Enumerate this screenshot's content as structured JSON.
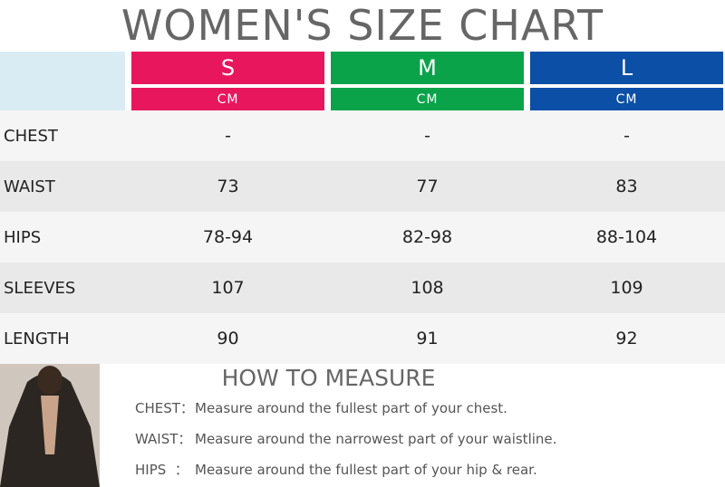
{
  "header": {
    "title": "WOMEN'S SIZE CHART"
  },
  "table": {
    "columns": [
      {
        "size": "S",
        "unit": "CM",
        "color": "#e8175d"
      },
      {
        "size": "M",
        "unit": "CM",
        "color": "#0aa34a"
      },
      {
        "size": "L",
        "unit": "CM",
        "color": "#0b4fa6"
      }
    ],
    "rows": [
      [
        "CHEST",
        "-",
        "-",
        "-"
      ],
      [
        "WAIST",
        "73",
        "77",
        "83"
      ],
      [
        "HIPS",
        "78-94",
        "82-98",
        "88-104"
      ],
      [
        "SLEEVES",
        "107",
        "108",
        "109"
      ],
      [
        "LENGTH",
        "90",
        "91",
        "92"
      ]
    ]
  },
  "measure": {
    "title": "HOW TO MEASURE",
    "items": [
      {
        "label": "CHEST：",
        "text": "Measure around the fullest part of your chest."
      },
      {
        "label": "WAIST：",
        "text": "Measure around the narrowest part of your waistline."
      },
      {
        "label": "HIPS  ：",
        "text": "Measure around the fullest part of your hip & rear."
      }
    ]
  }
}
